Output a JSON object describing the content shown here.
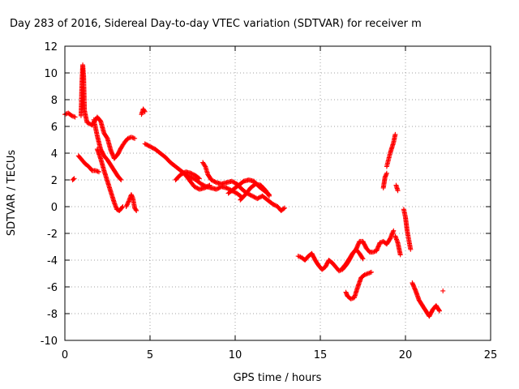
{
  "chart_data": {
    "type": "scatter",
    "title": "Day 283 of 2016, Sidereal Day-to-day VTEC variation (SDTVAR) for receiver m",
    "xlabel": "GPS time / hours",
    "ylabel": "SDTVAR / TECUs",
    "xlim": [
      0,
      25
    ],
    "ylim": [
      -10,
      12
    ],
    "xticks": [
      "0",
      "5",
      "10",
      "15",
      "20",
      "25"
    ],
    "yticks": [
      "-10",
      "-8",
      "-6",
      "-4",
      "-2",
      "0",
      "2",
      "4",
      "6",
      "8",
      "10",
      "12"
    ],
    "grid": true,
    "marker": "plus",
    "color": "#ff0000",
    "segments": [
      [
        [
          0.0,
          6.9
        ],
        [
          0.2,
          7.0
        ],
        [
          0.4,
          6.8
        ],
        [
          0.6,
          6.7
        ]
      ],
      [
        [
          0.45,
          2.0
        ],
        [
          0.55,
          2.1
        ]
      ],
      [
        [
          0.95,
          6.8
        ],
        [
          1.0,
          9.2
        ],
        [
          1.05,
          10.6
        ],
        [
          1.1,
          9.8
        ],
        [
          1.15,
          7.2
        ],
        [
          1.3,
          6.3
        ],
        [
          1.6,
          6.1
        ],
        [
          1.9,
          6.7
        ],
        [
          2.1,
          6.4
        ],
        [
          2.3,
          5.5
        ],
        [
          2.5,
          5.1
        ],
        [
          2.7,
          4.2
        ],
        [
          2.9,
          3.6
        ],
        [
          3.1,
          3.9
        ],
        [
          3.3,
          4.4
        ],
        [
          3.45,
          4.7
        ]
      ],
      [
        [
          0.8,
          3.8
        ],
        [
          1.0,
          3.5
        ],
        [
          1.2,
          3.2
        ],
        [
          1.4,
          3.0
        ],
        [
          1.6,
          2.7
        ],
        [
          1.8,
          2.7
        ],
        [
          2.0,
          2.6
        ]
      ],
      [
        [
          1.7,
          6.5
        ],
        [
          1.9,
          5.3
        ],
        [
          2.1,
          4.3
        ],
        [
          2.3,
          3.8
        ],
        [
          2.5,
          3.5
        ],
        [
          2.7,
          3.1
        ],
        [
          2.9,
          2.7
        ],
        [
          3.1,
          2.3
        ],
        [
          3.3,
          2.0
        ]
      ],
      [
        [
          1.9,
          4.3
        ],
        [
          2.1,
          3.6
        ],
        [
          2.3,
          2.7
        ],
        [
          2.5,
          1.9
        ],
        [
          2.7,
          1.1
        ],
        [
          2.9,
          0.3
        ],
        [
          3.05,
          -0.2
        ],
        [
          3.2,
          -0.3
        ],
        [
          3.4,
          0.0
        ]
      ],
      [
        [
          3.5,
          4.8
        ],
        [
          3.7,
          5.1
        ],
        [
          3.9,
          5.2
        ],
        [
          4.1,
          5.1
        ]
      ],
      [
        [
          3.6,
          0.0
        ],
        [
          3.75,
          0.4
        ],
        [
          3.9,
          0.9
        ],
        [
          4.0,
          0.6
        ],
        [
          4.1,
          -0.1
        ],
        [
          4.2,
          -0.3
        ]
      ],
      [
        [
          4.5,
          6.9
        ],
        [
          4.6,
          7.3
        ],
        [
          4.7,
          7.1
        ]
      ],
      [
        [
          4.7,
          4.7
        ],
        [
          5.0,
          4.5
        ],
        [
          5.3,
          4.3
        ],
        [
          5.6,
          4.0
        ],
        [
          5.9,
          3.7
        ],
        [
          6.2,
          3.3
        ],
        [
          6.5,
          3.0
        ],
        [
          6.8,
          2.7
        ],
        [
          7.1,
          2.4
        ],
        [
          7.4,
          2.2
        ],
        [
          7.7,
          2.0
        ],
        [
          8.0,
          1.7
        ],
        [
          8.3,
          1.5
        ],
        [
          8.6,
          1.4
        ],
        [
          8.9,
          1.3
        ],
        [
          9.2,
          1.5
        ],
        [
          9.5,
          1.4
        ],
        [
          9.8,
          1.2
        ],
        [
          10.1,
          1.0
        ],
        [
          10.4,
          0.7
        ]
      ],
      [
        [
          6.5,
          2.0
        ],
        [
          6.8,
          2.4
        ],
        [
          7.1,
          2.6
        ],
        [
          7.4,
          2.5
        ],
        [
          7.7,
          2.3
        ],
        [
          7.9,
          2.1
        ]
      ],
      [
        [
          7.0,
          2.5
        ],
        [
          7.3,
          2.0
        ],
        [
          7.6,
          1.5
        ],
        [
          7.9,
          1.3
        ],
        [
          8.2,
          1.4
        ],
        [
          8.5,
          1.6
        ]
      ],
      [
        [
          8.1,
          3.3
        ],
        [
          8.25,
          3.0
        ],
        [
          8.4,
          2.4
        ],
        [
          8.6,
          2.0
        ],
        [
          8.9,
          1.8
        ],
        [
          9.2,
          1.7
        ],
        [
          9.5,
          1.8
        ],
        [
          9.8,
          1.9
        ],
        [
          10.1,
          1.7
        ],
        [
          10.4,
          1.3
        ],
        [
          10.7,
          1.0
        ],
        [
          11.0,
          0.8
        ],
        [
          11.3,
          0.6
        ],
        [
          11.6,
          0.8
        ],
        [
          11.9,
          0.5
        ],
        [
          12.2,
          0.2
        ],
        [
          12.5,
          0.0
        ],
        [
          12.7,
          -0.3
        ],
        [
          12.9,
          -0.1
        ]
      ],
      [
        [
          9.6,
          1.0
        ],
        [
          9.9,
          1.3
        ],
        [
          10.2,
          1.6
        ],
        [
          10.5,
          1.9
        ],
        [
          10.8,
          2.0
        ],
        [
          11.1,
          1.9
        ],
        [
          11.4,
          1.5
        ],
        [
          11.7,
          1.2
        ],
        [
          12.0,
          0.9
        ]
      ],
      [
        [
          10.3,
          0.5
        ],
        [
          10.6,
          0.9
        ],
        [
          10.9,
          1.4
        ],
        [
          11.2,
          1.7
        ],
        [
          11.5,
          1.6
        ],
        [
          11.8,
          1.2
        ],
        [
          12.0,
          0.8
        ]
      ],
      [
        [
          13.7,
          -3.7
        ],
        [
          13.9,
          -3.8
        ],
        [
          14.1,
          -4.0
        ],
        [
          14.3,
          -3.7
        ],
        [
          14.5,
          -3.5
        ],
        [
          14.7,
          -4.0
        ],
        [
          14.9,
          -4.4
        ],
        [
          15.1,
          -4.7
        ],
        [
          15.3,
          -4.5
        ],
        [
          15.5,
          -4.0
        ],
        [
          15.7,
          -4.2
        ],
        [
          15.9,
          -4.5
        ],
        [
          16.1,
          -4.8
        ],
        [
          16.3,
          -4.7
        ],
        [
          16.5,
          -4.4
        ],
        [
          16.7,
          -4.0
        ],
        [
          16.9,
          -3.5
        ],
        [
          17.1,
          -3.2
        ],
        [
          17.3,
          -2.6
        ],
        [
          17.5,
          -2.6
        ],
        [
          17.7,
          -3.1
        ],
        [
          17.9,
          -3.4
        ],
        [
          18.1,
          -3.4
        ],
        [
          18.3,
          -3.3
        ],
        [
          18.5,
          -2.7
        ],
        [
          18.7,
          -2.6
        ],
        [
          18.9,
          -2.8
        ],
        [
          19.1,
          -2.4
        ],
        [
          19.3,
          -1.8
        ]
      ],
      [
        [
          16.3,
          -4.6
        ],
        [
          16.5,
          -4.3
        ],
        [
          16.7,
          -3.9
        ],
        [
          16.9,
          -3.5
        ],
        [
          17.1,
          -3.2
        ],
        [
          17.3,
          -3.5
        ],
        [
          17.5,
          -3.9
        ]
      ],
      [
        [
          16.5,
          -6.4
        ],
        [
          16.6,
          -6.7
        ],
        [
          16.8,
          -6.9
        ],
        [
          17.0,
          -6.8
        ],
        [
          17.2,
          -6.0
        ],
        [
          17.4,
          -5.3
        ],
        [
          17.6,
          -5.1
        ],
        [
          17.8,
          -5.0
        ],
        [
          18.0,
          -4.9
        ]
      ],
      [
        [
          18.7,
          1.4
        ],
        [
          18.8,
          2.2
        ],
        [
          18.9,
          2.5
        ]
      ],
      [
        [
          18.9,
          3.0
        ],
        [
          19.1,
          4.0
        ],
        [
          19.3,
          4.8
        ],
        [
          19.4,
          5.4
        ]
      ],
      [
        [
          19.45,
          1.6
        ],
        [
          19.55,
          1.2
        ]
      ],
      [
        [
          19.4,
          -2.2
        ],
        [
          19.55,
          -2.7
        ],
        [
          19.7,
          -3.6
        ]
      ],
      [
        [
          19.9,
          -0.2
        ],
        [
          20.0,
          -0.8
        ],
        [
          20.1,
          -1.8
        ],
        [
          20.2,
          -2.5
        ],
        [
          20.3,
          -3.2
        ]
      ],
      [
        [
          20.4,
          -5.7
        ],
        [
          20.6,
          -6.3
        ],
        [
          20.8,
          -7.0
        ],
        [
          21.0,
          -7.4
        ],
        [
          21.2,
          -7.8
        ],
        [
          21.4,
          -8.2
        ],
        [
          21.6,
          -7.7
        ],
        [
          21.8,
          -7.4
        ],
        [
          22.0,
          -7.8
        ]
      ],
      [
        [
          22.2,
          -6.3
        ]
      ]
    ]
  }
}
